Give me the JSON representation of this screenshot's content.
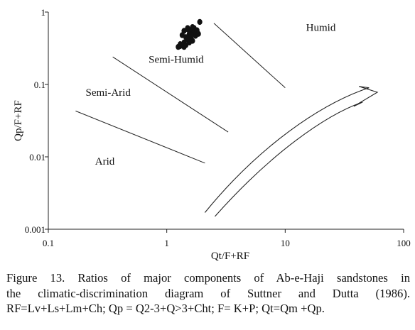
{
  "chart_data": {
    "type": "scatter",
    "xlabel": "Qt/F+RF",
    "ylabel": "Qp/F+RF",
    "xscale": "log",
    "yscale": "log",
    "xlim": [
      0.1,
      100
    ],
    "ylim": [
      0.001,
      1
    ],
    "xticks": [
      0.1,
      1,
      10,
      100
    ],
    "xtick_labels": [
      "0.1",
      "1",
      "10",
      "100"
    ],
    "yticks": [
      0.001,
      0.01,
      0.1,
      1
    ],
    "ytick_labels": [
      "0.001",
      "0.01",
      "0.1",
      "1"
    ],
    "grid": false,
    "series": [
      {
        "points": [
          [
            1.5,
            0.58
          ],
          [
            1.6,
            0.55
          ],
          [
            1.7,
            0.6
          ],
          [
            1.9,
            0.73
          ],
          [
            1.65,
            0.62
          ],
          [
            1.4,
            0.55
          ],
          [
            1.55,
            0.5
          ],
          [
            1.7,
            0.52
          ],
          [
            1.8,
            0.56
          ],
          [
            1.35,
            0.48
          ],
          [
            1.45,
            0.45
          ],
          [
            1.6,
            0.44
          ],
          [
            1.75,
            0.47
          ],
          [
            1.5,
            0.42
          ],
          [
            1.65,
            0.4
          ],
          [
            1.4,
            0.38
          ],
          [
            1.55,
            0.38
          ],
          [
            1.3,
            0.36
          ],
          [
            1.45,
            0.35
          ],
          [
            1.3,
            0.34
          ],
          [
            1.4,
            0.33
          ],
          [
            1.25,
            0.33
          ],
          [
            1.6,
            0.48
          ],
          [
            1.85,
            0.5
          ],
          [
            1.5,
            0.6
          ]
        ]
      }
    ],
    "boundary_lines": [
      {
        "x": [
          2.5,
          10
        ],
        "y": [
          0.7,
          0.09
        ]
      },
      {
        "x": [
          0.35,
          3.3
        ],
        "y": [
          0.24,
          0.022
        ]
      },
      {
        "x": [
          0.17,
          2.1
        ],
        "y": [
          0.043,
          0.0082
        ]
      }
    ],
    "regions": [
      {
        "label": "Humid",
        "x": 20,
        "y": 0.55
      },
      {
        "label": "Semi-Humid",
        "x": 1.2,
        "y": 0.2
      },
      {
        "label": "Semi-Arid",
        "x": 0.32,
        "y": 0.07
      },
      {
        "label": "Arid",
        "x": 0.3,
        "y": 0.0078
      }
    ],
    "arrow": {
      "outer": [
        [
          2.1,
          0.0017
        ],
        [
          6,
          0.014
        ],
        [
          20,
          0.054
        ],
        [
          51,
          0.09
        ]
      ],
      "inner": [
        [
          2.55,
          0.0015
        ],
        [
          7.5,
          0.011
        ],
        [
          22,
          0.038
        ],
        [
          45,
          0.057
        ]
      ],
      "head": [
        [
          42,
          0.094
        ],
        [
          60,
          0.078
        ],
        [
          38,
          0.05
        ]
      ]
    }
  },
  "caption": {
    "lines": [
      "Figure 13. Ratios of major components of Ab-e-Haji sandstones in",
      "the climatic-discrimination diagram of Suttner and Dutta (1986).",
      "RF=Lv+Ls+Lm+Ch; Qp = Q2-3+Q>3+Cht; F= K+P; Qt=Qm +Qp."
    ]
  }
}
